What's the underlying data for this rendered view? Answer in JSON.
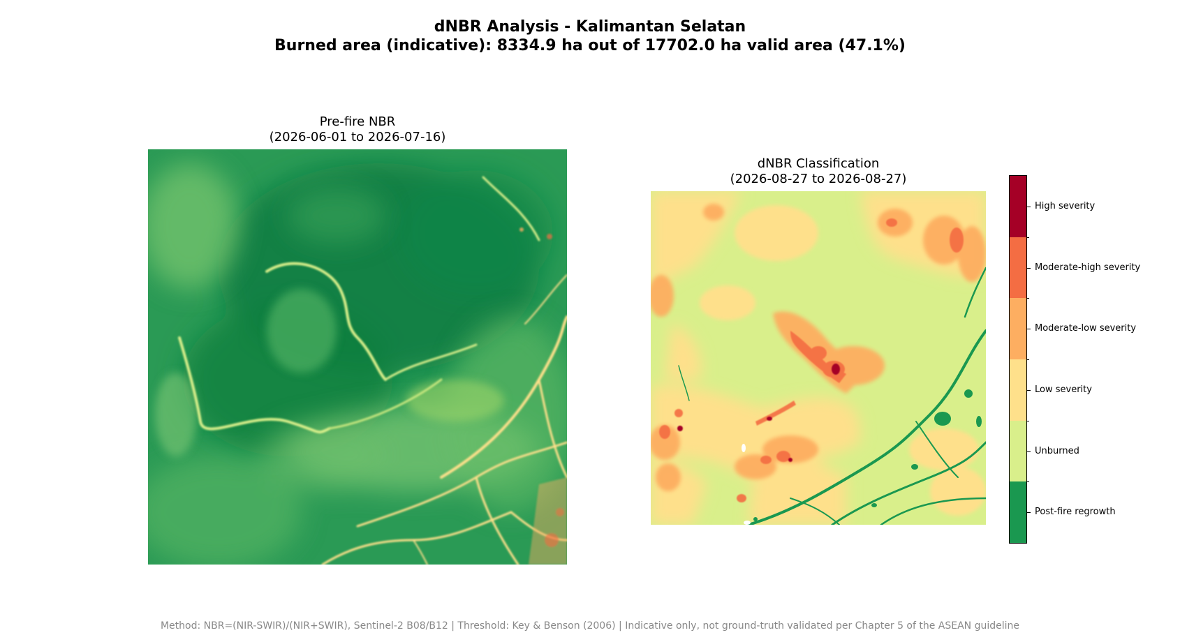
{
  "figure": {
    "title": "dNBR Analysis - Kalimantan Selatan",
    "subtitle": "Burned area (indicative): 8334.9 ha out of 17702.0 ha valid area (47.1%)",
    "footer": "Method: NBR=(NIR-SWIR)/(NIR+SWIR), Sentinel-2 B08/B12 | Threshold: Key & Benson (2006) | Indicative only, not ground-truth validated per Chapter 5 of the ASEAN guideline"
  },
  "left_panel": {
    "title_line1": "Pre-fire NBR",
    "title_line2": "(2026-06-01 to 2026-07-16)"
  },
  "right_panel": {
    "title_line1": "dNBR Classification",
    "title_line2": "(2026-08-27 to 2026-08-27)"
  },
  "colorbar": {
    "classes": [
      {
        "label": "High severity",
        "color": "#a50026"
      },
      {
        "label": "Moderate-high severity",
        "color": "#f46d43"
      },
      {
        "label": "Moderate-low severity",
        "color": "#fdae61"
      },
      {
        "label": "Low severity",
        "color": "#fee08b"
      },
      {
        "label": "Unburned",
        "color": "#d9ef8b"
      },
      {
        "label": "Post-fire regrowth",
        "color": "#1a9850"
      }
    ]
  }
}
